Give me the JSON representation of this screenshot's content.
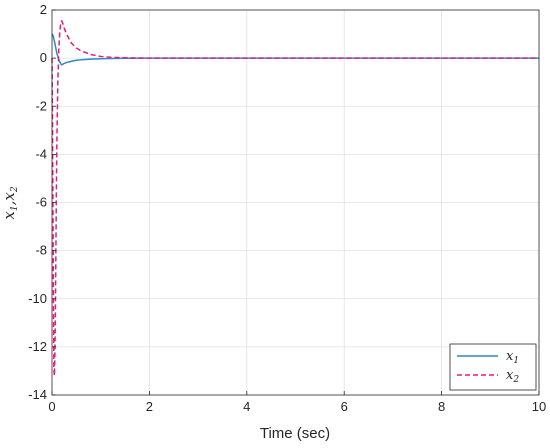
{
  "chart_data": {
    "type": "line",
    "title": "",
    "xlabel": "Time (sec)",
    "ylabel_main": "x",
    "ylabel_sub1": "1",
    "ylabel_sep": ",x",
    "ylabel_sub2": "2",
    "xlim": [
      0,
      10
    ],
    "ylim": [
      -14,
      2
    ],
    "xticks": [
      "0",
      "2",
      "4",
      "6",
      "8",
      "10"
    ],
    "xtick_values": [
      0,
      2,
      4,
      6,
      8,
      10
    ],
    "yticks": [
      "2",
      "0",
      "-2",
      "-4",
      "-6",
      "-8",
      "-10",
      "-12",
      "-14"
    ],
    "ytick_values": [
      2,
      0,
      -2,
      -4,
      -6,
      -8,
      -10,
      -12,
      -14
    ],
    "grid": true,
    "legend_position": "bottom-right",
    "series": [
      {
        "name_main": "x",
        "name_sub": "1",
        "color": "#2f86c9",
        "style": "solid",
        "x": [
          0,
          0.02,
          0.05,
          0.08,
          0.1,
          0.13,
          0.16,
          0.19,
          0.2,
          0.25,
          0.3,
          0.4,
          0.5,
          0.6,
          0.8,
          1.0,
          1.2,
          1.5,
          2,
          3,
          4,
          5,
          6,
          7,
          8,
          9,
          10
        ],
        "y": [
          1.0,
          0.95,
          0.7,
          0.4,
          0.2,
          0.0,
          -0.15,
          -0.27,
          -0.28,
          -0.22,
          -0.18,
          -0.13,
          -0.09,
          -0.07,
          -0.04,
          -0.025,
          -0.015,
          -0.007,
          0,
          0,
          0,
          0,
          0,
          0,
          0,
          0,
          0
        ]
      },
      {
        "name_main": "x",
        "name_sub": "2",
        "color": "#e6197d",
        "style": "dashed",
        "x": [
          0,
          0.01,
          0.02,
          0.03,
          0.04,
          0.05,
          0.06,
          0.07,
          0.08,
          0.09,
          0.1,
          0.12,
          0.14,
          0.16,
          0.18,
          0.2,
          0.22,
          0.25,
          0.3,
          0.35,
          0.4,
          0.5,
          0.6,
          0.8,
          1.0,
          1.2,
          1.5,
          2,
          3,
          4,
          5,
          6,
          7,
          8,
          9,
          10
        ],
        "y": [
          0,
          -2.5,
          -6.5,
          -10.5,
          -13.0,
          -13.2,
          -12.2,
          -10.5,
          -8.0,
          -5.5,
          -3.5,
          -1.0,
          0.4,
          1.1,
          1.45,
          1.55,
          1.45,
          1.25,
          1.0,
          0.8,
          0.62,
          0.42,
          0.3,
          0.15,
          0.07,
          0.035,
          0.015,
          0,
          0,
          0,
          0,
          0,
          0,
          0,
          0,
          0
        ]
      }
    ]
  }
}
